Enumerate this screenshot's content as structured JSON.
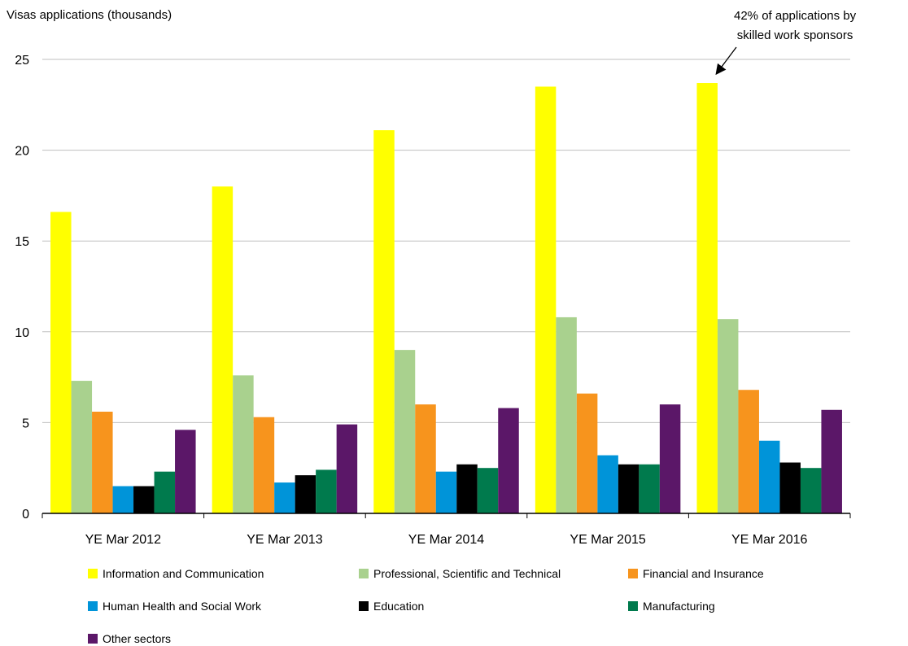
{
  "chart_data": {
    "type": "bar",
    "ylabel": "Visas applications (thousands)",
    "xlabel": "",
    "ylim": [
      0,
      25
    ],
    "yticks": [
      0,
      5,
      10,
      15,
      20,
      25
    ],
    "grid": true,
    "legend_position": "bottom",
    "categories": [
      "YE Mar 2012",
      "YE Mar 2013",
      "YE Mar 2014",
      "YE Mar 2015",
      "YE Mar 2016"
    ],
    "series": [
      {
        "name": "Information and Communication",
        "color": "#ffff00",
        "values": [
          16.6,
          18.0,
          21.1,
          23.5,
          23.7
        ]
      },
      {
        "name": "Professional, Scientific and Technical",
        "color": "#a9d18e",
        "values": [
          7.3,
          7.6,
          9.0,
          10.8,
          10.7
        ]
      },
      {
        "name": "Financial and Insurance",
        "color": "#f7941d",
        "values": [
          5.6,
          5.3,
          6.0,
          6.6,
          6.8
        ]
      },
      {
        "name": "Human Health and Social Work",
        "color": "#0094d9",
        "values": [
          1.5,
          1.7,
          2.3,
          3.2,
          4.0
        ]
      },
      {
        "name": "Education",
        "color": "#000000",
        "values": [
          1.5,
          2.1,
          2.7,
          2.7,
          2.8
        ]
      },
      {
        "name": "Manufacturing",
        "color": "#007a4d",
        "values": [
          2.3,
          2.4,
          2.5,
          2.7,
          2.5
        ]
      },
      {
        "name": "Other sectors",
        "color": "#5b1768",
        "values": [
          4.6,
          4.9,
          5.8,
          6.0,
          5.7
        ]
      }
    ],
    "annotation": {
      "line1": "42% of applications by",
      "line2": "skilled work sponsors"
    }
  }
}
